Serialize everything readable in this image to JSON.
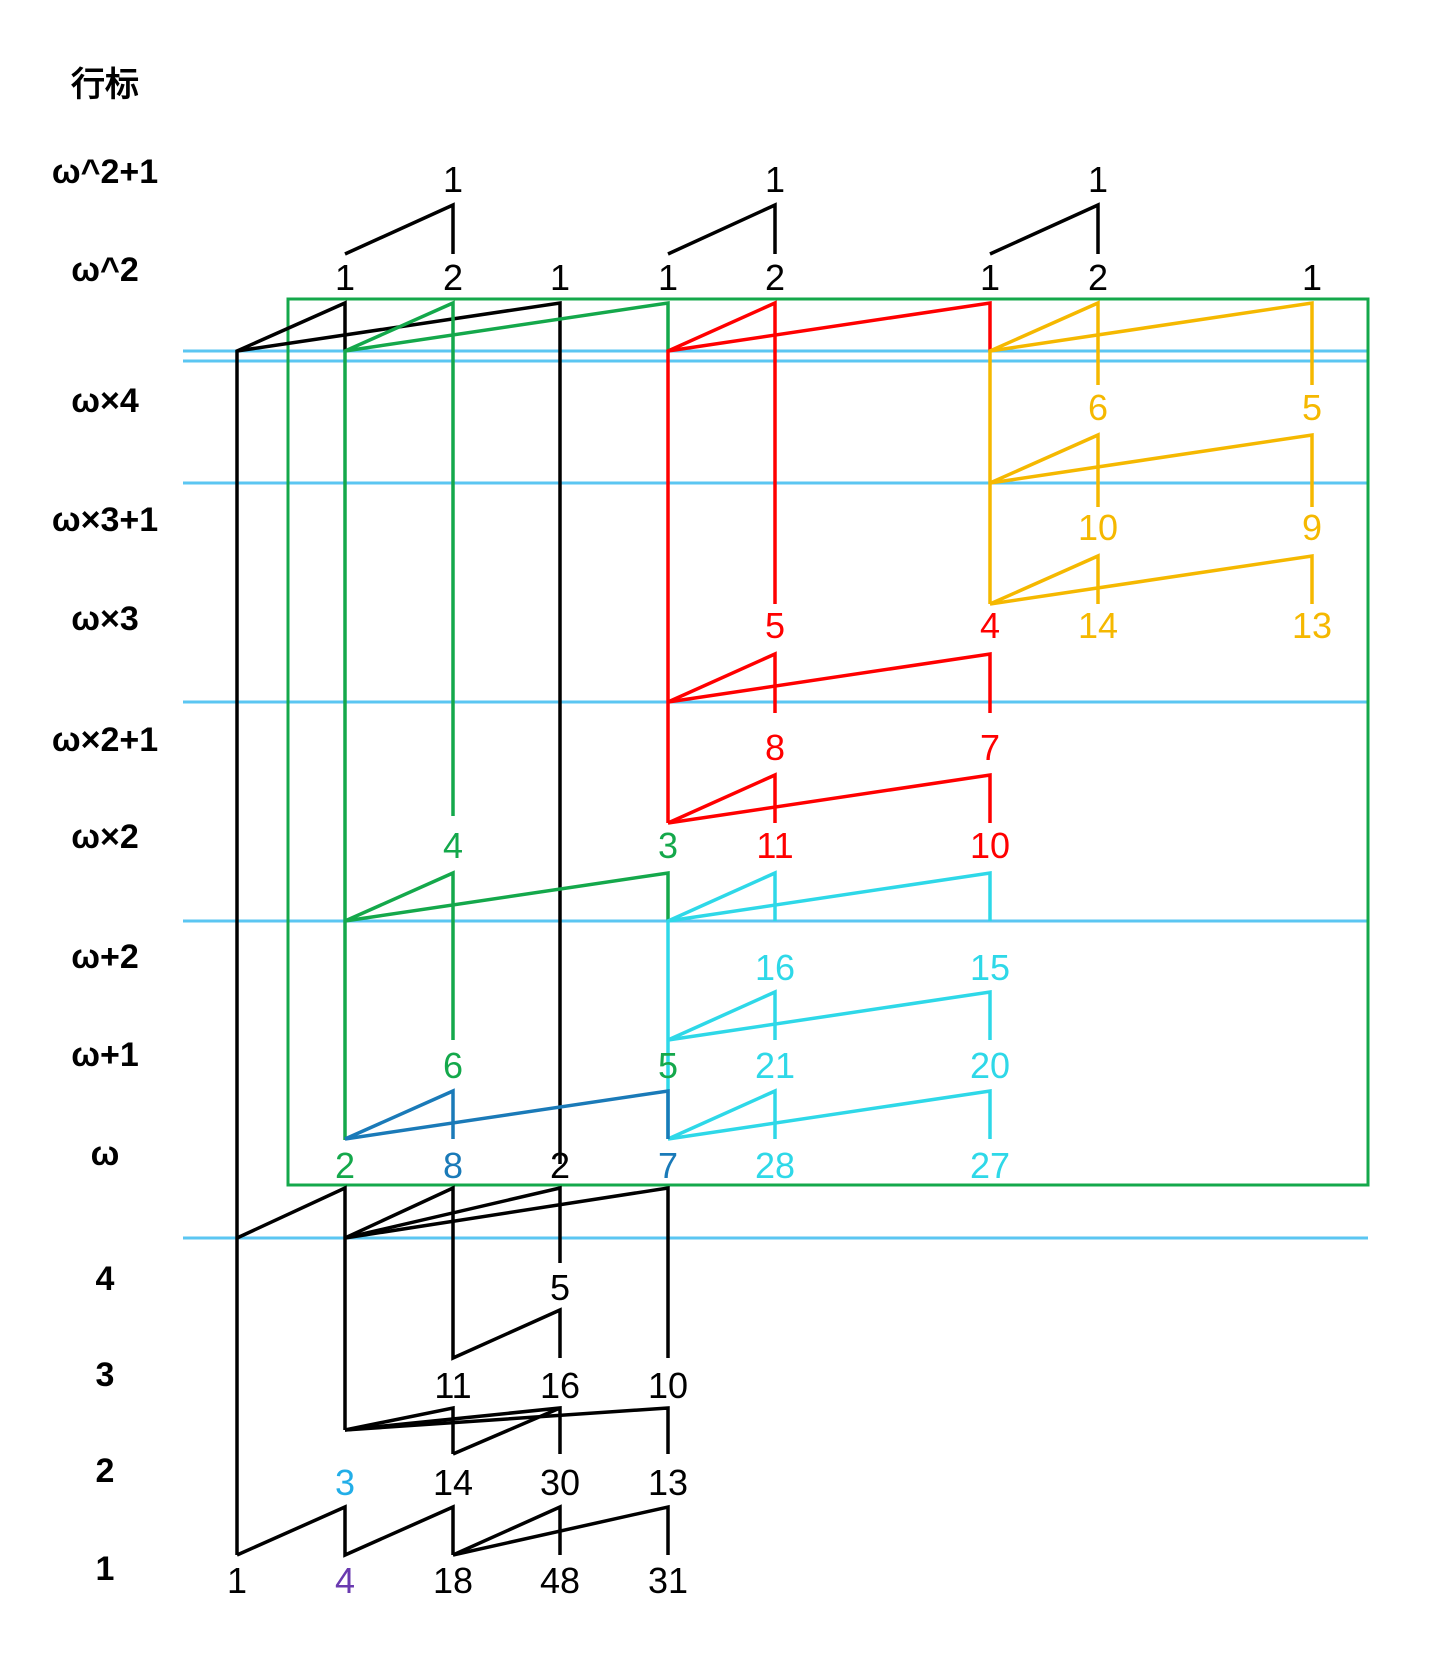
{
  "header": {
    "row_index_label": "行标"
  },
  "row_labels": [
    {
      "id": "w2p1",
      "text": "ω^2+1"
    },
    {
      "id": "w2",
      "text": "ω^2"
    },
    {
      "id": "w4",
      "text": "ω×4"
    },
    {
      "id": "w3p1",
      "text": "ω×3+1"
    },
    {
      "id": "w3",
      "text": "ω×3"
    },
    {
      "id": "w2p1b",
      "text": "ω×2+1"
    },
    {
      "id": "wx2",
      "text": "ω×2"
    },
    {
      "id": "wp2",
      "text": "ω+2"
    },
    {
      "id": "wp1",
      "text": "ω+1"
    },
    {
      "id": "w",
      "text": "ω"
    },
    {
      "id": "r4",
      "text": "4"
    },
    {
      "id": "r3",
      "text": "3"
    },
    {
      "id": "r2",
      "text": "2"
    },
    {
      "id": "r1",
      "text": "1"
    }
  ],
  "colors": {
    "black": "#000000",
    "green": "#14a84b",
    "red": "#ff0000",
    "yellow": "#f5b800",
    "cyan": "#2ed8e8",
    "blue": "#1a7ab8",
    "lightblue": "#5bc6f2",
    "skyblue": "#22aee8",
    "purple": "#6a3ab0",
    "frame": "#14a84b"
  },
  "numbers": [
    {
      "text": "1",
      "row": "w2p1",
      "col": "c2",
      "color": "black"
    },
    {
      "text": "1",
      "row": "w2p1",
      "col": "c5",
      "color": "black"
    },
    {
      "text": "1",
      "row": "w2p1",
      "col": "c8",
      "color": "black"
    },
    {
      "text": "1",
      "row": "w2",
      "col": "c1",
      "color": "black"
    },
    {
      "text": "2",
      "row": "w2",
      "col": "c2",
      "color": "black"
    },
    {
      "text": "1",
      "row": "w2",
      "col": "c3",
      "color": "black"
    },
    {
      "text": "1",
      "row": "w2",
      "col": "c4",
      "color": "black"
    },
    {
      "text": "2",
      "row": "w2",
      "col": "c5",
      "color": "black"
    },
    {
      "text": "1",
      "row": "w2",
      "col": "c7",
      "color": "black"
    },
    {
      "text": "2",
      "row": "w2",
      "col": "c8",
      "color": "black"
    },
    {
      "text": "1",
      "row": "w2",
      "col": "c10",
      "color": "black"
    },
    {
      "text": "6",
      "row": "w4",
      "col": "c8",
      "color": "yellow"
    },
    {
      "text": "5",
      "row": "w4",
      "col": "c10",
      "color": "yellow"
    },
    {
      "text": "10",
      "row": "w3p1",
      "col": "c8",
      "color": "yellow"
    },
    {
      "text": "9",
      "row": "w3p1",
      "col": "c10",
      "color": "yellow"
    },
    {
      "text": "5",
      "row": "w3",
      "col": "c5",
      "color": "red"
    },
    {
      "text": "4",
      "row": "w3",
      "col": "c7",
      "color": "red"
    },
    {
      "text": "14",
      "row": "w3",
      "col": "c8",
      "color": "yellow"
    },
    {
      "text": "13",
      "row": "w3",
      "col": "c10",
      "color": "yellow"
    },
    {
      "text": "8",
      "row": "w2p1b",
      "col": "c5",
      "color": "red"
    },
    {
      "text": "7",
      "row": "w2p1b",
      "col": "c7",
      "color": "red"
    },
    {
      "text": "4",
      "row": "wx2",
      "col": "c2",
      "color": "green"
    },
    {
      "text": "3",
      "row": "wx2",
      "col": "c4",
      "color": "green"
    },
    {
      "text": "11",
      "row": "wx2",
      "col": "c5",
      "color": "red"
    },
    {
      "text": "10",
      "row": "wx2",
      "col": "c7",
      "color": "red"
    },
    {
      "text": "16",
      "row": "wp2",
      "col": "c5",
      "color": "cyan"
    },
    {
      "text": "15",
      "row": "wp2",
      "col": "c7",
      "color": "cyan"
    },
    {
      "text": "6",
      "row": "wp1",
      "col": "c2",
      "color": "green"
    },
    {
      "text": "5",
      "row": "wp1",
      "col": "c4",
      "color": "green"
    },
    {
      "text": "21",
      "row": "wp1",
      "col": "c5",
      "color": "cyan"
    },
    {
      "text": "20",
      "row": "wp1",
      "col": "c7",
      "color": "cyan"
    },
    {
      "text": "2",
      "row": "w",
      "col": "c1",
      "color": "green"
    },
    {
      "text": "8",
      "row": "w",
      "col": "c2",
      "color": "blue"
    },
    {
      "text": "2",
      "row": "w",
      "col": "c3",
      "color": "black"
    },
    {
      "text": "7",
      "row": "w",
      "col": "c4",
      "color": "blue"
    },
    {
      "text": "28",
      "row": "w",
      "col": "c5",
      "color": "cyan"
    },
    {
      "text": "27",
      "row": "w",
      "col": "c7",
      "color": "cyan"
    },
    {
      "text": "5",
      "row": "r4",
      "col": "c3",
      "color": "black"
    },
    {
      "text": "11",
      "row": "r3",
      "col": "c2",
      "color": "black"
    },
    {
      "text": "16",
      "row": "r3",
      "col": "c3",
      "color": "black"
    },
    {
      "text": "10",
      "row": "r3",
      "col": "c4",
      "color": "black"
    },
    {
      "text": "3",
      "row": "r2",
      "col": "c1",
      "color": "skyblue"
    },
    {
      "text": "14",
      "row": "r2",
      "col": "c2",
      "color": "black"
    },
    {
      "text": "30",
      "row": "r2",
      "col": "c3",
      "color": "black"
    },
    {
      "text": "13",
      "row": "r2",
      "col": "c4",
      "color": "black"
    },
    {
      "text": "1",
      "row": "r1",
      "col": "c0",
      "color": "black"
    },
    {
      "text": "4",
      "row": "r1",
      "col": "c1",
      "color": "purple"
    },
    {
      "text": "18",
      "row": "r1",
      "col": "c2",
      "color": "black"
    },
    {
      "text": "48",
      "row": "r1",
      "col": "c3",
      "color": "black"
    },
    {
      "text": "31",
      "row": "r1",
      "col": "c4",
      "color": "black"
    }
  ]
}
